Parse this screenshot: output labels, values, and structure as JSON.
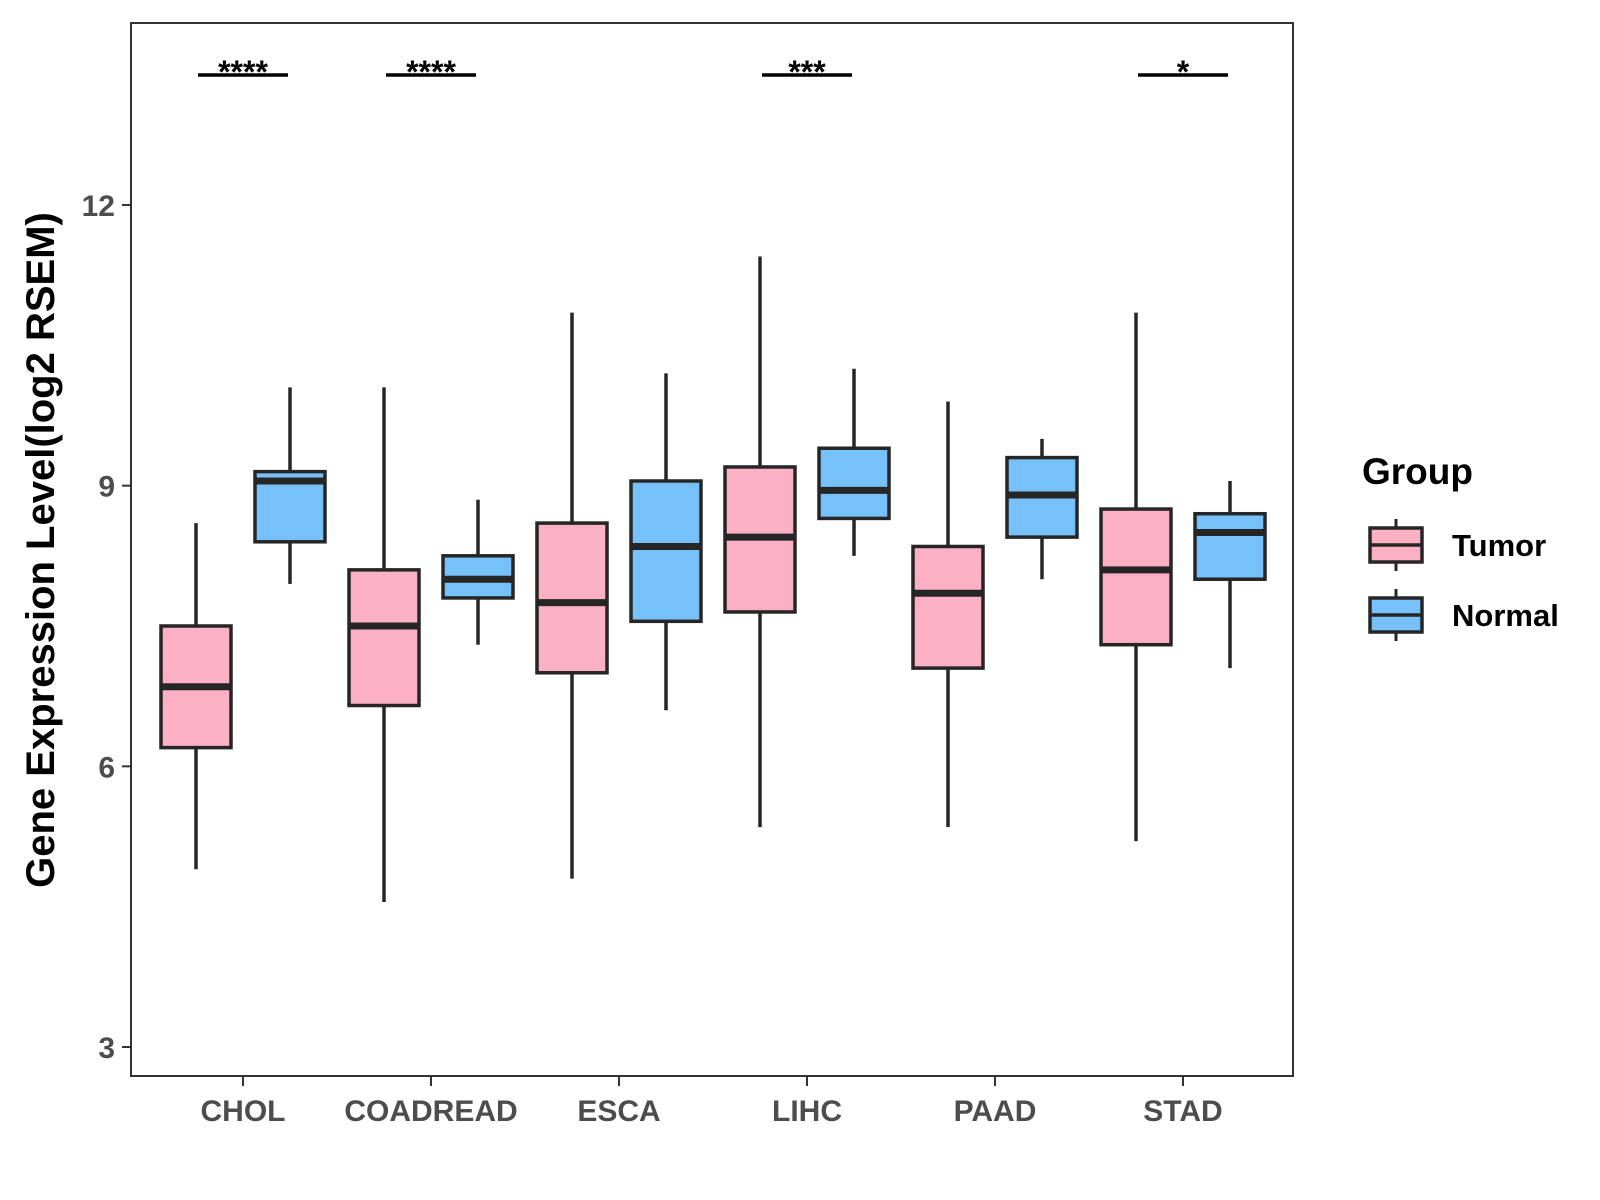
{
  "chart_data": {
    "type": "boxplot",
    "title": "",
    "xlabel": "",
    "ylabel": "Gene Expression Level(log2 RSEM)",
    "ylim": [
      2.7,
      14.0
    ],
    "yticks": [
      3,
      6,
      9,
      12
    ],
    "grid": false,
    "legend": {
      "title": "Group",
      "position": "right",
      "entries": [
        {
          "name": "Tumor",
          "color": "#FBB1C3"
        },
        {
          "name": "Normal",
          "color": "#77C1FA"
        }
      ]
    },
    "categories": [
      "CHOL",
      "COADREAD",
      "ESCA",
      "LIHC",
      "PAAD",
      "STAD"
    ],
    "series": [
      {
        "name": "Tumor",
        "color": "#FBB1C3",
        "boxes": [
          {
            "whisker_low": 4.9,
            "q1": 6.2,
            "median": 6.85,
            "q3": 7.5,
            "whisker_high": 8.6
          },
          {
            "whisker_low": 4.55,
            "q1": 6.65,
            "median": 7.5,
            "q3": 8.1,
            "whisker_high": 10.05
          },
          {
            "whisker_low": 4.8,
            "q1": 7.0,
            "median": 7.75,
            "q3": 8.6,
            "whisker_high": 10.85
          },
          {
            "whisker_low": 5.35,
            "q1": 7.65,
            "median": 8.45,
            "q3": 9.2,
            "whisker_high": 11.45
          },
          {
            "whisker_low": 5.35,
            "q1": 7.05,
            "median": 7.85,
            "q3": 8.35,
            "whisker_high": 9.9
          },
          {
            "whisker_low": 5.2,
            "q1": 7.3,
            "median": 8.1,
            "q3": 8.75,
            "whisker_high": 10.85
          }
        ]
      },
      {
        "name": "Normal",
        "color": "#77C1FA",
        "boxes": [
          {
            "whisker_low": 7.95,
            "q1": 8.4,
            "median": 9.05,
            "q3": 9.15,
            "whisker_high": 10.05
          },
          {
            "whisker_low": 7.3,
            "q1": 7.8,
            "median": 8.0,
            "q3": 8.25,
            "whisker_high": 8.85
          },
          {
            "whisker_low": 6.6,
            "q1": 7.55,
            "median": 8.35,
            "q3": 9.05,
            "whisker_high": 10.2
          },
          {
            "whisker_low": 8.25,
            "q1": 8.65,
            "median": 8.95,
            "q3": 9.4,
            "whisker_high": 10.25
          },
          {
            "whisker_low": 8.0,
            "q1": 8.45,
            "median": 8.9,
            "q3": 9.3,
            "whisker_high": 9.5
          },
          {
            "whisker_low": 7.05,
            "q1": 8.0,
            "median": 8.5,
            "q3": 8.7,
            "whisker_high": 9.05
          }
        ]
      }
    ],
    "annotations": [
      {
        "category": "CHOL",
        "label": "****"
      },
      {
        "category": "COADREAD",
        "label": "****"
      },
      {
        "category": "ESCA",
        "label": ""
      },
      {
        "category": "LIHC",
        "label": "***"
      },
      {
        "category": "PAAD",
        "label": ""
      },
      {
        "category": "STAD",
        "label": "*"
      }
    ]
  }
}
